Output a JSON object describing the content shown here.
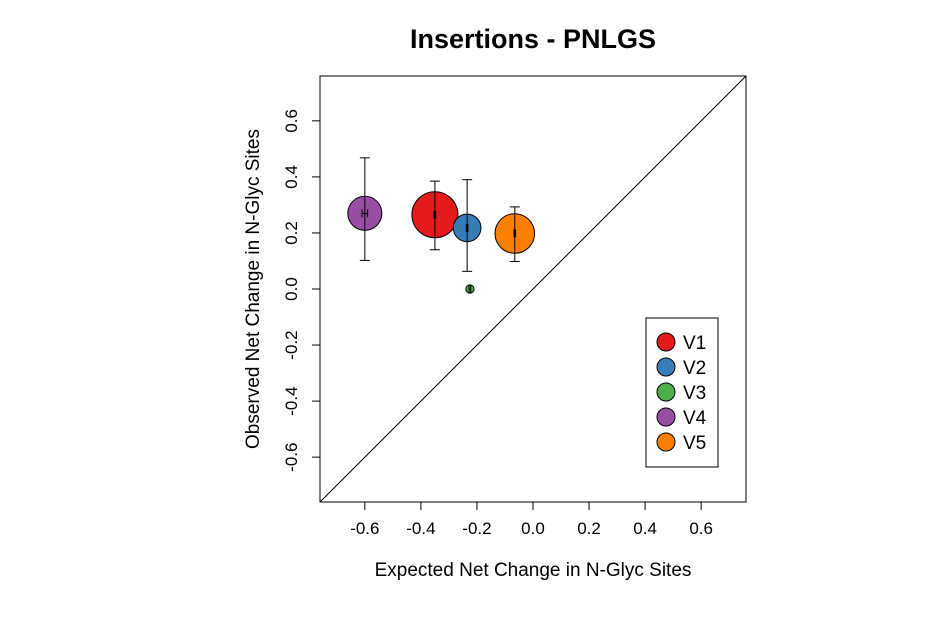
{
  "chart_data": {
    "type": "scatter",
    "title": "Insertions - PNLGS",
    "xlabel": "Expected Net Change in N-Glyc Sites",
    "ylabel": "Observed Net Change in N-Glyc Sites",
    "xlim": [
      -0.76,
      0.76
    ],
    "ylim": [
      -0.76,
      0.76
    ],
    "xticks": [
      -0.6,
      -0.4,
      -0.2,
      0.0,
      0.2,
      0.4,
      0.6
    ],
    "yticks": [
      -0.6,
      -0.4,
      -0.2,
      0.0,
      0.2,
      0.4,
      0.6
    ],
    "xtick_labels": [
      "-0.6",
      "-0.4",
      "-0.2",
      "0.0",
      "0.2",
      "0.4",
      "0.6"
    ],
    "ytick_labels": [
      "-0.6",
      "-0.4",
      "-0.2",
      "0.0",
      "0.2",
      "0.4",
      "0.6"
    ],
    "reference_line": "y = x",
    "grid": false,
    "legend_position": "bottom-right",
    "series": [
      {
        "name": "V1",
        "color": "#e41a1c",
        "x": -0.35,
        "y": 0.265,
        "x_err": 0.003,
        "y_low": 0.14,
        "y_high": 0.385,
        "size": 1.0
      },
      {
        "name": "V2",
        "color": "#377eb8",
        "x": -0.235,
        "y": 0.218,
        "x_err": 0.003,
        "y_low": 0.063,
        "y_high": 0.39,
        "size": 0.6
      },
      {
        "name": "V3",
        "color": "#4daf4a",
        "x": -0.225,
        "y": 0.0,
        "x_err": 0.003,
        "y_low": 0.0,
        "y_high": 0.0,
        "size": 0.18
      },
      {
        "name": "V4",
        "color": "#984ea3",
        "x": -0.6,
        "y": 0.27,
        "x_err": 0.01,
        "y_low": 0.102,
        "y_high": 0.468,
        "size": 0.74
      },
      {
        "name": "V5",
        "color": "#ff7f00",
        "x": -0.065,
        "y": 0.198,
        "x_err": 0.003,
        "y_low": 0.098,
        "y_high": 0.293,
        "size": 0.86
      }
    ]
  }
}
